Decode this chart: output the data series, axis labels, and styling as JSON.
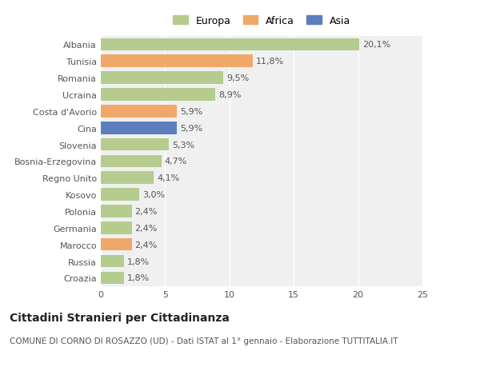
{
  "countries": [
    "Albania",
    "Tunisia",
    "Romania",
    "Ucraina",
    "Costa d'Avorio",
    "Cina",
    "Slovenia",
    "Bosnia-Erzegovina",
    "Regno Unito",
    "Kosovo",
    "Polonia",
    "Germania",
    "Marocco",
    "Russia",
    "Croazia"
  ],
  "values": [
    20.1,
    11.8,
    9.5,
    8.9,
    5.9,
    5.9,
    5.3,
    4.7,
    4.1,
    3.0,
    2.4,
    2.4,
    2.4,
    1.8,
    1.8
  ],
  "labels": [
    "20,1%",
    "11,8%",
    "9,5%",
    "8,9%",
    "5,9%",
    "5,9%",
    "5,3%",
    "4,7%",
    "4,1%",
    "3,0%",
    "2,4%",
    "2,4%",
    "2,4%",
    "1,8%",
    "1,8%"
  ],
  "continents": [
    "Europa",
    "Africa",
    "Europa",
    "Europa",
    "Africa",
    "Asia",
    "Europa",
    "Europa",
    "Europa",
    "Europa",
    "Europa",
    "Europa",
    "Africa",
    "Europa",
    "Europa"
  ],
  "colors": {
    "Europa": "#b5cc8e",
    "Africa": "#f0a868",
    "Asia": "#5b7fbd"
  },
  "legend_order": [
    "Europa",
    "Africa",
    "Asia"
  ],
  "xlim": [
    0,
    25
  ],
  "xticks": [
    0,
    5,
    10,
    15,
    20,
    25
  ],
  "title": "Cittadini Stranieri per Cittadinanza",
  "subtitle": "COMUNE DI CORNO DI ROSAZZO (UD) - Dati ISTAT al 1° gennaio - Elaborazione TUTTITALIA.IT",
  "bg_color": "#ffffff",
  "plot_bg_color": "#f0f0f0",
  "grid_color": "#ffffff",
  "label_color": "#555555",
  "bar_height": 0.75,
  "title_fontsize": 10,
  "subtitle_fontsize": 7.5,
  "tick_fontsize": 8,
  "value_fontsize": 8
}
